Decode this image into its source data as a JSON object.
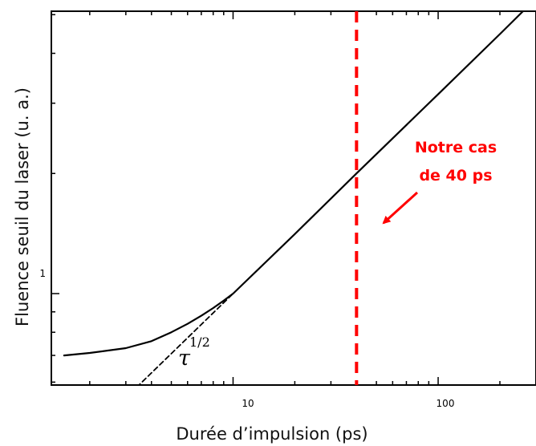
{
  "chart_data": {
    "type": "line",
    "title": "",
    "xlabel": "Durée d’impulsion (ps)",
    "ylabel": "Fluence seuil du laser (u. a.)",
    "x_scale": "log",
    "y_scale": "log",
    "xlim": [
      1.3,
      300
    ],
    "ylim": [
      0.59,
      5.1
    ],
    "x_tick_labels": [
      "10",
      "100"
    ],
    "x_tick_values": [
      10,
      100
    ],
    "y_tick_labels": [
      "1"
    ],
    "y_tick_values": [
      1
    ],
    "grid": false,
    "series": [
      {
        "style": "solid",
        "color": "#000000",
        "x": [
          1.5,
          2,
          3,
          4,
          5,
          6,
          7,
          8,
          9,
          10,
          20,
          40,
          100,
          200,
          290
        ],
        "y": [
          0.7,
          0.71,
          0.73,
          0.76,
          0.8,
          0.84,
          0.88,
          0.92,
          0.96,
          1.0,
          1.41,
          2.0,
          3.16,
          4.47,
          5.4
        ]
      },
      {
        "style": "dashed",
        "color": "#000000",
        "x": [
          2.3,
          10
        ],
        "y": [
          0.48,
          1.0
        ]
      }
    ],
    "vline": {
      "x": 40,
      "color": "#ff0000",
      "style": "dashed"
    },
    "annotations": {
      "slope_base": "τ",
      "slope_exp": "1/2",
      "case_line1": "Notre cas",
      "case_line2": "de 40 ps"
    }
  },
  "colors": {
    "curve": "#000000",
    "highlight": "#ff0000"
  }
}
